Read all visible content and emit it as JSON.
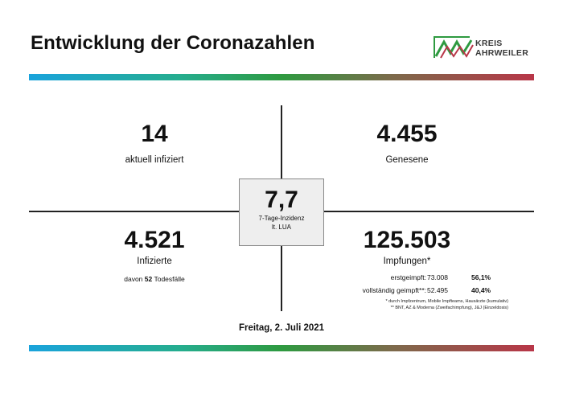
{
  "header": {
    "title": "Entwicklung der Coronazahlen",
    "logo_line1": "KREIS",
    "logo_line2": "AHRWEILER",
    "logo_colors": [
      "#2e9a40",
      "#b83648"
    ]
  },
  "quadrants": {
    "top_left": {
      "value": "14",
      "label": "aktuell infiziert"
    },
    "top_right": {
      "value": "4.455",
      "label": "Genesene"
    },
    "bottom_left": {
      "value": "4.521",
      "label": "Infizierte",
      "deaths_prefix": "davon",
      "deaths_count": "52",
      "deaths_suffix": "Todesfälle"
    },
    "bottom_right": {
      "value": "125.503",
      "label": "Impfungen*",
      "rows": [
        {
          "label": "erstgeimpft:",
          "count": "73.008",
          "percent": "56,1%"
        },
        {
          "label": "vollständig geimpft**:",
          "count": "52.495",
          "percent": "40,4%"
        }
      ],
      "footnote1": "* durch Impfzentrum, Mobile Impfteams, Hausärzte (kumulativ)",
      "footnote2": "** BNT, AZ & Moderna (Zweifachimpfung), J&J (Einzeldosis)"
    }
  },
  "incidence": {
    "value": "7,7",
    "label_line1": "7-Tage-Inzidenz",
    "label_line2": "lt. LUA"
  },
  "date": "Freitag, 2. Juli 2021",
  "colors": {
    "band_start": "#1aa3dc",
    "band_mid": "#2e9a40",
    "band_end": "#b83648"
  }
}
